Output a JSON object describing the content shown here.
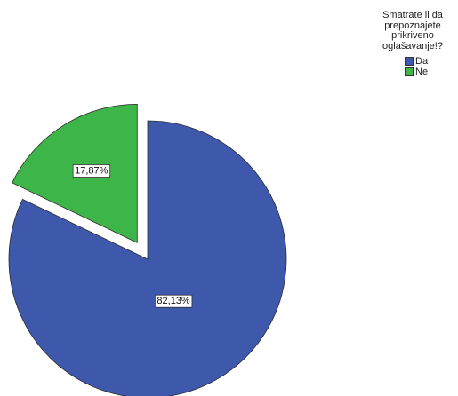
{
  "chart_data": {
    "type": "pie",
    "title": "Smatrate li da prepoznajete prikriveno oglašavanje!?",
    "title_lines": [
      "Smatrate li da",
      "prepoznajete",
      "prikriveno",
      "oglašavanje!?"
    ],
    "categories": [
      "Da",
      "Ne"
    ],
    "values": [
      82.13,
      17.87
    ],
    "data_labels": [
      "82,13%",
      "17,87%"
    ],
    "colors": [
      "#3e58ac",
      "#3db549"
    ],
    "exploded": [
      "Ne"
    ],
    "legend_position": "top-right",
    "start_angle": "12 o'clock",
    "direction": "clockwise"
  }
}
